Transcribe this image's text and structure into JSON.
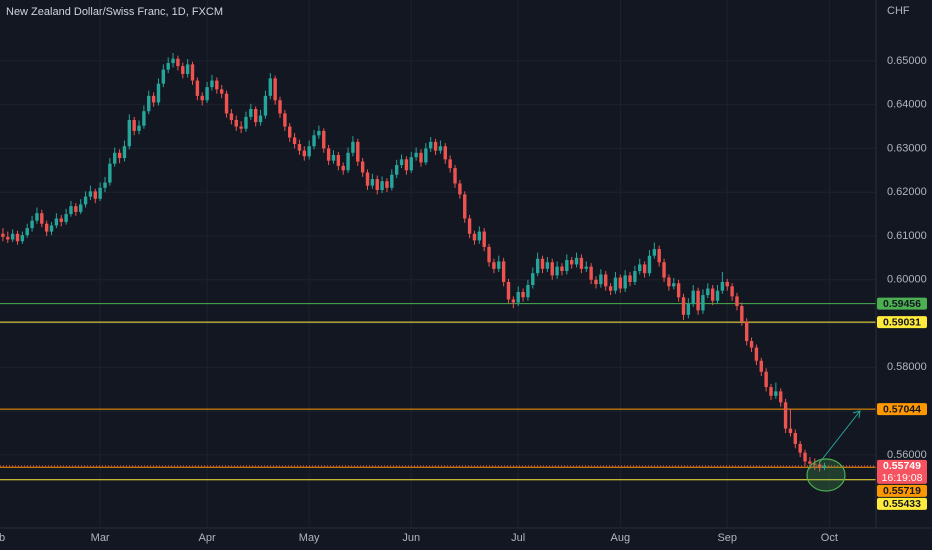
{
  "chart_data": {
    "type": "candlestick",
    "title": "New Zealand Dollar/Swiss Franc, 1D, FXCM",
    "currency": "CHF",
    "up_color": "#26a69a",
    "down_color": "#ef5350",
    "grid": true,
    "xlim": [
      -0.6,
      179.6
    ],
    "xticks": [
      {
        "value": -1.5,
        "label": "Feb"
      },
      {
        "value": 20,
        "label": "Mar"
      },
      {
        "value": 42,
        "label": "Apr"
      },
      {
        "value": 63,
        "label": "May"
      },
      {
        "value": 84,
        "label": "Jun"
      },
      {
        "value": 106,
        "label": "Jul"
      },
      {
        "value": 127,
        "label": "Aug"
      },
      {
        "value": 149,
        "label": "Sep"
      },
      {
        "value": 170,
        "label": "Oct"
      }
    ],
    "ylim": [
      0.5433,
      0.6639
    ],
    "yticks": [
      {
        "value": 0.56,
        "label": "0.56000"
      },
      {
        "value": 0.57,
        "label": "0.57000"
      },
      {
        "value": 0.58,
        "label": "0.58000"
      },
      {
        "value": 0.59,
        "label": "0.59000"
      },
      {
        "value": 0.6,
        "label": "0.60000"
      },
      {
        "value": 0.61,
        "label": "0.61000"
      },
      {
        "value": 0.62,
        "label": "0.62000"
      },
      {
        "value": 0.63,
        "label": "0.63000"
      },
      {
        "value": 0.64,
        "label": "0.64000"
      },
      {
        "value": 0.65,
        "label": "0.65000"
      }
    ],
    "levels": [
      {
        "value": 0.59456,
        "label": "0.59456",
        "color": "#4caf50",
        "text_color": "#131722",
        "style": "solid"
      },
      {
        "value": 0.59031,
        "label": "0.59031",
        "color": "#ffeb3b",
        "text_color": "#131722",
        "style": "solid"
      },
      {
        "value": 0.57044,
        "label": "0.57044",
        "color": "#ff9800",
        "text_color": "#131722",
        "style": "solid"
      },
      {
        "value": 0.55749,
        "label": "0.55749",
        "color": "#f7525f",
        "text_color": "#ffffff",
        "style": "dotted",
        "sublabel": "16:19:08"
      },
      {
        "value": 0.55719,
        "label": "0.55719",
        "color": "#ff9800",
        "text_color": "#131722",
        "style": "solid"
      },
      {
        "value": 0.55433,
        "label": "0.55433",
        "color": "#ffeb3b",
        "text_color": "#131722",
        "style": "solid"
      }
    ],
    "ohlc": [
      [
        0.6105,
        0.6118,
        0.6088,
        0.6098
      ],
      [
        0.6098,
        0.611,
        0.6084,
        0.6092
      ],
      [
        0.6092,
        0.6115,
        0.6086,
        0.6105
      ],
      [
        0.6105,
        0.6112,
        0.608,
        0.6088
      ],
      [
        0.6088,
        0.611,
        0.6082,
        0.6102
      ],
      [
        0.6102,
        0.6128,
        0.6096,
        0.6118
      ],
      [
        0.6118,
        0.6146,
        0.611,
        0.6135
      ],
      [
        0.6135,
        0.6165,
        0.6128,
        0.6152
      ],
      [
        0.6152,
        0.616,
        0.612,
        0.6128
      ],
      [
        0.6128,
        0.6135,
        0.61,
        0.611
      ],
      [
        0.611,
        0.6132,
        0.6102,
        0.6124
      ],
      [
        0.6124,
        0.6152,
        0.6118,
        0.614
      ],
      [
        0.614,
        0.6148,
        0.6122,
        0.6132
      ],
      [
        0.6132,
        0.6162,
        0.6126,
        0.615
      ],
      [
        0.615,
        0.618,
        0.6144,
        0.6168
      ],
      [
        0.6168,
        0.6175,
        0.6146,
        0.6155
      ],
      [
        0.6155,
        0.6184,
        0.615,
        0.6172
      ],
      [
        0.6172,
        0.6202,
        0.6165,
        0.619
      ],
      [
        0.619,
        0.6215,
        0.6182,
        0.6202
      ],
      [
        0.6202,
        0.6208,
        0.6175,
        0.6185
      ],
      [
        0.6185,
        0.6222,
        0.618,
        0.621
      ],
      [
        0.621,
        0.6235,
        0.62,
        0.6222
      ],
      [
        0.6222,
        0.6278,
        0.6215,
        0.6265
      ],
      [
        0.6265,
        0.6302,
        0.6258,
        0.629
      ],
      [
        0.629,
        0.6298,
        0.6266,
        0.6278
      ],
      [
        0.6278,
        0.6318,
        0.627,
        0.6305
      ],
      [
        0.6305,
        0.6378,
        0.6298,
        0.6365
      ],
      [
        0.6365,
        0.6372,
        0.633,
        0.634
      ],
      [
        0.634,
        0.6364,
        0.6332,
        0.6352
      ],
      [
        0.6352,
        0.6398,
        0.6345,
        0.6385
      ],
      [
        0.6385,
        0.6432,
        0.6378,
        0.642
      ],
      [
        0.642,
        0.6428,
        0.6395,
        0.6405
      ],
      [
        0.6405,
        0.646,
        0.6398,
        0.6448
      ],
      [
        0.6448,
        0.6492,
        0.644,
        0.648
      ],
      [
        0.648,
        0.6508,
        0.6472,
        0.6495
      ],
      [
        0.6495,
        0.6518,
        0.6485,
        0.6505
      ],
      [
        0.6505,
        0.6512,
        0.6478,
        0.6488
      ],
      [
        0.6488,
        0.6496,
        0.646,
        0.647
      ],
      [
        0.647,
        0.6504,
        0.6462,
        0.6492
      ],
      [
        0.6492,
        0.6498,
        0.6445,
        0.6455
      ],
      [
        0.6455,
        0.6462,
        0.641,
        0.642
      ],
      [
        0.642,
        0.6428,
        0.6398,
        0.641
      ],
      [
        0.641,
        0.6452,
        0.6404,
        0.644
      ],
      [
        0.644,
        0.6468,
        0.6432,
        0.6455
      ],
      [
        0.6455,
        0.6462,
        0.6425,
        0.6435
      ],
      [
        0.6435,
        0.6445,
        0.6415,
        0.6425
      ],
      [
        0.6425,
        0.6432,
        0.637,
        0.638
      ],
      [
        0.638,
        0.639,
        0.6355,
        0.6365
      ],
      [
        0.6365,
        0.6375,
        0.634,
        0.635
      ],
      [
        0.635,
        0.6362,
        0.6335,
        0.6345
      ],
      [
        0.6345,
        0.6384,
        0.6338,
        0.6372
      ],
      [
        0.6372,
        0.6402,
        0.6365,
        0.639
      ],
      [
        0.639,
        0.6396,
        0.635,
        0.636
      ],
      [
        0.636,
        0.6388,
        0.6352,
        0.6375
      ],
      [
        0.6375,
        0.6432,
        0.6368,
        0.642
      ],
      [
        0.642,
        0.6472,
        0.6412,
        0.646
      ],
      [
        0.646,
        0.6466,
        0.64,
        0.641
      ],
      [
        0.641,
        0.6418,
        0.637,
        0.638
      ],
      [
        0.638,
        0.6388,
        0.634,
        0.635
      ],
      [
        0.635,
        0.6358,
        0.6315,
        0.6325
      ],
      [
        0.6325,
        0.6335,
        0.63,
        0.631
      ],
      [
        0.631,
        0.632,
        0.6285,
        0.6295
      ],
      [
        0.6295,
        0.6305,
        0.6272,
        0.6282
      ],
      [
        0.6282,
        0.6318,
        0.6275,
        0.6305
      ],
      [
        0.6305,
        0.6342,
        0.6298,
        0.633
      ],
      [
        0.633,
        0.6352,
        0.6322,
        0.634
      ],
      [
        0.634,
        0.6346,
        0.629,
        0.63
      ],
      [
        0.63,
        0.6308,
        0.6262,
        0.6272
      ],
      [
        0.6272,
        0.6296,
        0.6265,
        0.6285
      ],
      [
        0.6285,
        0.6292,
        0.625,
        0.626
      ],
      [
        0.626,
        0.6268,
        0.624,
        0.625
      ],
      [
        0.625,
        0.6302,
        0.6244,
        0.629
      ],
      [
        0.629,
        0.6328,
        0.6282,
        0.6315
      ],
      [
        0.6315,
        0.6322,
        0.626,
        0.627
      ],
      [
        0.627,
        0.6278,
        0.6235,
        0.6245
      ],
      [
        0.6245,
        0.6252,
        0.6205,
        0.6215
      ],
      [
        0.6215,
        0.6242,
        0.6208,
        0.623
      ],
      [
        0.623,
        0.6238,
        0.6195,
        0.6205
      ],
      [
        0.6205,
        0.6236,
        0.6198,
        0.6225
      ],
      [
        0.6225,
        0.6232,
        0.62,
        0.621
      ],
      [
        0.621,
        0.6252,
        0.6204,
        0.624
      ],
      [
        0.624,
        0.6274,
        0.6232,
        0.6262
      ],
      [
        0.6262,
        0.6286,
        0.6255,
        0.6275
      ],
      [
        0.6275,
        0.6282,
        0.624,
        0.625
      ],
      [
        0.625,
        0.6292,
        0.6244,
        0.628
      ],
      [
        0.628,
        0.6302,
        0.6272,
        0.629
      ],
      [
        0.629,
        0.6298,
        0.6258,
        0.6268
      ],
      [
        0.6268,
        0.6312,
        0.6262,
        0.63
      ],
      [
        0.63,
        0.6326,
        0.6292,
        0.6315
      ],
      [
        0.6315,
        0.6322,
        0.6285,
        0.6295
      ],
      [
        0.6295,
        0.6318,
        0.6288,
        0.6305
      ],
      [
        0.6305,
        0.6312,
        0.6265,
        0.6275
      ],
      [
        0.6275,
        0.6284,
        0.6245,
        0.6255
      ],
      [
        0.6255,
        0.6262,
        0.621,
        0.622
      ],
      [
        0.622,
        0.6228,
        0.6185,
        0.6195
      ],
      [
        0.6195,
        0.6202,
        0.613,
        0.614
      ],
      [
        0.614,
        0.6148,
        0.6095,
        0.6105
      ],
      [
        0.6105,
        0.6112,
        0.608,
        0.609
      ],
      [
        0.609,
        0.6122,
        0.6082,
        0.611
      ],
      [
        0.611,
        0.6118,
        0.6065,
        0.6075
      ],
      [
        0.6075,
        0.6082,
        0.603,
        0.604
      ],
      [
        0.604,
        0.6048,
        0.6015,
        0.6025
      ],
      [
        0.6025,
        0.6055,
        0.6018,
        0.6042
      ],
      [
        0.6042,
        0.605,
        0.5985,
        0.5995
      ],
      [
        0.5995,
        0.6002,
        0.5945,
        0.5955
      ],
      [
        0.5955,
        0.5962,
        0.5935,
        0.5948
      ],
      [
        0.5948,
        0.5985,
        0.594,
        0.5972
      ],
      [
        0.5972,
        0.598,
        0.595,
        0.596
      ],
      [
        0.596,
        0.6,
        0.5952,
        0.5988
      ],
      [
        0.5988,
        0.6028,
        0.598,
        0.6015
      ],
      [
        0.6015,
        0.6062,
        0.6008,
        0.6048
      ],
      [
        0.6048,
        0.6055,
        0.6015,
        0.6025
      ],
      [
        0.6025,
        0.6052,
        0.6018,
        0.604
      ],
      [
        0.604,
        0.6048,
        0.6,
        0.601
      ],
      [
        0.601,
        0.6042,
        0.6002,
        0.603
      ],
      [
        0.603,
        0.6038,
        0.601,
        0.602
      ],
      [
        0.602,
        0.6058,
        0.6012,
        0.6045
      ],
      [
        0.6045,
        0.6052,
        0.6025,
        0.6035
      ],
      [
        0.6035,
        0.6062,
        0.6028,
        0.605
      ],
      [
        0.605,
        0.6058,
        0.6015,
        0.6025
      ],
      [
        0.6025,
        0.6042,
        0.6018,
        0.603
      ],
      [
        0.603,
        0.6038,
        0.599,
        0.6
      ],
      [
        0.6,
        0.6008,
        0.598,
        0.599
      ],
      [
        0.599,
        0.6024,
        0.5982,
        0.6012
      ],
      [
        0.6012,
        0.602,
        0.5975,
        0.5985
      ],
      [
        0.5985,
        0.5992,
        0.5965,
        0.5975
      ],
      [
        0.5975,
        0.6018,
        0.5968,
        0.6005
      ],
      [
        0.6005,
        0.6012,
        0.597,
        0.598
      ],
      [
        0.598,
        0.6022,
        0.5972,
        0.601
      ],
      [
        0.601,
        0.6018,
        0.5985,
        0.5995
      ],
      [
        0.5995,
        0.6032,
        0.5988,
        0.602
      ],
      [
        0.602,
        0.6048,
        0.6012,
        0.6035
      ],
      [
        0.6035,
        0.6042,
        0.6005,
        0.6015
      ],
      [
        0.6015,
        0.6068,
        0.6008,
        0.6055
      ],
      [
        0.6055,
        0.6085,
        0.6048,
        0.607
      ],
      [
        0.607,
        0.6078,
        0.603,
        0.604
      ],
      [
        0.604,
        0.6048,
        0.5995,
        0.6005
      ],
      [
        0.6005,
        0.6012,
        0.5975,
        0.5985
      ],
      [
        0.5985,
        0.6004,
        0.5978,
        0.5992
      ],
      [
        0.5992,
        0.6,
        0.595,
        0.596
      ],
      [
        0.596,
        0.5968,
        0.5908,
        0.592
      ],
      [
        0.592,
        0.5958,
        0.5912,
        0.5945
      ],
      [
        0.5945,
        0.5988,
        0.5938,
        0.5975
      ],
      [
        0.5975,
        0.5982,
        0.592,
        0.593
      ],
      [
        0.593,
        0.5978,
        0.5922,
        0.5965
      ],
      [
        0.5965,
        0.5992,
        0.5958,
        0.598
      ],
      [
        0.598,
        0.5988,
        0.5942,
        0.5952
      ],
      [
        0.5952,
        0.5988,
        0.5945,
        0.5975
      ],
      [
        0.5975,
        0.6018,
        0.5968,
        0.5995
      ],
      [
        0.5995,
        0.6002,
        0.5975,
        0.5985
      ],
      [
        0.5985,
        0.5992,
        0.5952,
        0.5962
      ],
      [
        0.5962,
        0.597,
        0.593,
        0.594
      ],
      [
        0.594,
        0.5948,
        0.5895,
        0.5905
      ],
      [
        0.5905,
        0.5912,
        0.585,
        0.586
      ],
      [
        0.586,
        0.5868,
        0.5835,
        0.5845
      ],
      [
        0.5845,
        0.5852,
        0.5805,
        0.5815
      ],
      [
        0.5815,
        0.5822,
        0.578,
        0.579
      ],
      [
        0.579,
        0.5798,
        0.5745,
        0.5755
      ],
      [
        0.5755,
        0.5762,
        0.5725,
        0.5735
      ],
      [
        0.5735,
        0.5765,
        0.5728,
        0.5745
      ],
      [
        0.5745,
        0.5752,
        0.571,
        0.572
      ],
      [
        0.572,
        0.5728,
        0.565,
        0.566
      ],
      [
        0.566,
        0.5705,
        0.5642,
        0.565
      ],
      [
        0.565,
        0.5658,
        0.5615,
        0.5625
      ],
      [
        0.5625,
        0.5632,
        0.5595,
        0.5605
      ],
      [
        0.5605,
        0.5612,
        0.5575,
        0.5585
      ],
      [
        0.5585,
        0.5595,
        0.5568,
        0.558
      ],
      [
        0.558,
        0.5592,
        0.5566,
        0.5578
      ],
      [
        0.5578,
        0.5586,
        0.5562,
        0.557
      ],
      [
        0.557,
        0.5582,
        0.5565,
        0.5575
      ]
    ]
  }
}
